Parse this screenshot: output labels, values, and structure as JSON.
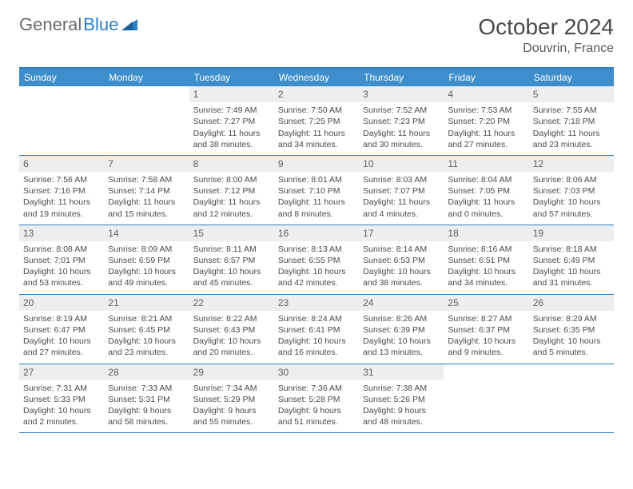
{
  "brand": {
    "part1": "General",
    "part2": "Blue"
  },
  "title": "October 2024",
  "location": "Douvrin, France",
  "colors": {
    "header_bg": "#3d8ecb",
    "header_border": "#2b7fc3",
    "daynum_bg": "#eceeef",
    "text": "#4a4a4a"
  },
  "day_names": [
    "Sunday",
    "Monday",
    "Tuesday",
    "Wednesday",
    "Thursday",
    "Friday",
    "Saturday"
  ],
  "weeks": [
    [
      {
        "n": "",
        "sr": "",
        "ss": "",
        "dl": ""
      },
      {
        "n": "",
        "sr": "",
        "ss": "",
        "dl": ""
      },
      {
        "n": "1",
        "sr": "Sunrise: 7:49 AM",
        "ss": "Sunset: 7:27 PM",
        "dl": "Daylight: 11 hours and 38 minutes."
      },
      {
        "n": "2",
        "sr": "Sunrise: 7:50 AM",
        "ss": "Sunset: 7:25 PM",
        "dl": "Daylight: 11 hours and 34 minutes."
      },
      {
        "n": "3",
        "sr": "Sunrise: 7:52 AM",
        "ss": "Sunset: 7:23 PM",
        "dl": "Daylight: 11 hours and 30 minutes."
      },
      {
        "n": "4",
        "sr": "Sunrise: 7:53 AM",
        "ss": "Sunset: 7:20 PM",
        "dl": "Daylight: 11 hours and 27 minutes."
      },
      {
        "n": "5",
        "sr": "Sunrise: 7:55 AM",
        "ss": "Sunset: 7:18 PM",
        "dl": "Daylight: 11 hours and 23 minutes."
      }
    ],
    [
      {
        "n": "6",
        "sr": "Sunrise: 7:56 AM",
        "ss": "Sunset: 7:16 PM",
        "dl": "Daylight: 11 hours and 19 minutes."
      },
      {
        "n": "7",
        "sr": "Sunrise: 7:58 AM",
        "ss": "Sunset: 7:14 PM",
        "dl": "Daylight: 11 hours and 15 minutes."
      },
      {
        "n": "8",
        "sr": "Sunrise: 8:00 AM",
        "ss": "Sunset: 7:12 PM",
        "dl": "Daylight: 11 hours and 12 minutes."
      },
      {
        "n": "9",
        "sr": "Sunrise: 8:01 AM",
        "ss": "Sunset: 7:10 PM",
        "dl": "Daylight: 11 hours and 8 minutes."
      },
      {
        "n": "10",
        "sr": "Sunrise: 8:03 AM",
        "ss": "Sunset: 7:07 PM",
        "dl": "Daylight: 11 hours and 4 minutes."
      },
      {
        "n": "11",
        "sr": "Sunrise: 8:04 AM",
        "ss": "Sunset: 7:05 PM",
        "dl": "Daylight: 11 hours and 0 minutes."
      },
      {
        "n": "12",
        "sr": "Sunrise: 8:06 AM",
        "ss": "Sunset: 7:03 PM",
        "dl": "Daylight: 10 hours and 57 minutes."
      }
    ],
    [
      {
        "n": "13",
        "sr": "Sunrise: 8:08 AM",
        "ss": "Sunset: 7:01 PM",
        "dl": "Daylight: 10 hours and 53 minutes."
      },
      {
        "n": "14",
        "sr": "Sunrise: 8:09 AM",
        "ss": "Sunset: 6:59 PM",
        "dl": "Daylight: 10 hours and 49 minutes."
      },
      {
        "n": "15",
        "sr": "Sunrise: 8:11 AM",
        "ss": "Sunset: 6:57 PM",
        "dl": "Daylight: 10 hours and 45 minutes."
      },
      {
        "n": "16",
        "sr": "Sunrise: 8:13 AM",
        "ss": "Sunset: 6:55 PM",
        "dl": "Daylight: 10 hours and 42 minutes."
      },
      {
        "n": "17",
        "sr": "Sunrise: 8:14 AM",
        "ss": "Sunset: 6:53 PM",
        "dl": "Daylight: 10 hours and 38 minutes."
      },
      {
        "n": "18",
        "sr": "Sunrise: 8:16 AM",
        "ss": "Sunset: 6:51 PM",
        "dl": "Daylight: 10 hours and 34 minutes."
      },
      {
        "n": "19",
        "sr": "Sunrise: 8:18 AM",
        "ss": "Sunset: 6:49 PM",
        "dl": "Daylight: 10 hours and 31 minutes."
      }
    ],
    [
      {
        "n": "20",
        "sr": "Sunrise: 8:19 AM",
        "ss": "Sunset: 6:47 PM",
        "dl": "Daylight: 10 hours and 27 minutes."
      },
      {
        "n": "21",
        "sr": "Sunrise: 8:21 AM",
        "ss": "Sunset: 6:45 PM",
        "dl": "Daylight: 10 hours and 23 minutes."
      },
      {
        "n": "22",
        "sr": "Sunrise: 8:22 AM",
        "ss": "Sunset: 6:43 PM",
        "dl": "Daylight: 10 hours and 20 minutes."
      },
      {
        "n": "23",
        "sr": "Sunrise: 8:24 AM",
        "ss": "Sunset: 6:41 PM",
        "dl": "Daylight: 10 hours and 16 minutes."
      },
      {
        "n": "24",
        "sr": "Sunrise: 8:26 AM",
        "ss": "Sunset: 6:39 PM",
        "dl": "Daylight: 10 hours and 13 minutes."
      },
      {
        "n": "25",
        "sr": "Sunrise: 8:27 AM",
        "ss": "Sunset: 6:37 PM",
        "dl": "Daylight: 10 hours and 9 minutes."
      },
      {
        "n": "26",
        "sr": "Sunrise: 8:29 AM",
        "ss": "Sunset: 6:35 PM",
        "dl": "Daylight: 10 hours and 5 minutes."
      }
    ],
    [
      {
        "n": "27",
        "sr": "Sunrise: 7:31 AM",
        "ss": "Sunset: 5:33 PM",
        "dl": "Daylight: 10 hours and 2 minutes."
      },
      {
        "n": "28",
        "sr": "Sunrise: 7:33 AM",
        "ss": "Sunset: 5:31 PM",
        "dl": "Daylight: 9 hours and 58 minutes."
      },
      {
        "n": "29",
        "sr": "Sunrise: 7:34 AM",
        "ss": "Sunset: 5:29 PM",
        "dl": "Daylight: 9 hours and 55 minutes."
      },
      {
        "n": "30",
        "sr": "Sunrise: 7:36 AM",
        "ss": "Sunset: 5:28 PM",
        "dl": "Daylight: 9 hours and 51 minutes."
      },
      {
        "n": "31",
        "sr": "Sunrise: 7:38 AM",
        "ss": "Sunset: 5:26 PM",
        "dl": "Daylight: 9 hours and 48 minutes."
      },
      {
        "n": "",
        "sr": "",
        "ss": "",
        "dl": ""
      },
      {
        "n": "",
        "sr": "",
        "ss": "",
        "dl": ""
      }
    ]
  ]
}
